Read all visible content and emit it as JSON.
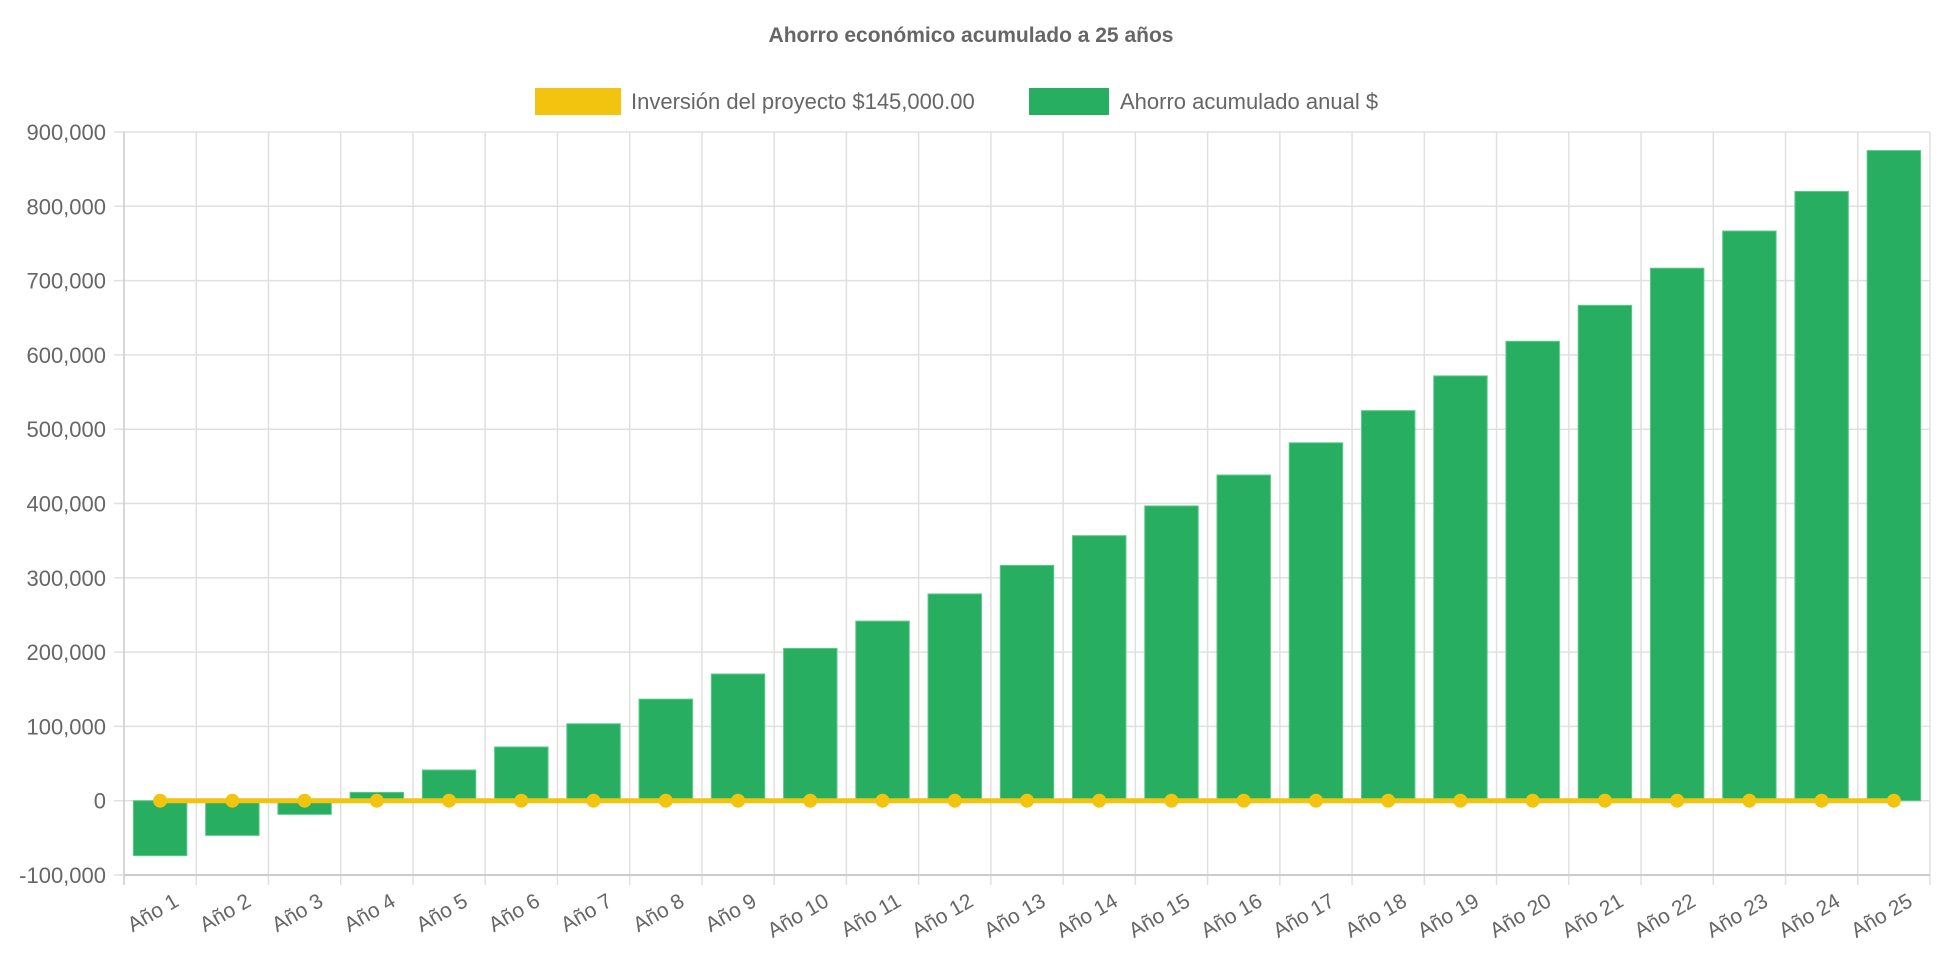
{
  "chart_data": {
    "type": "bar",
    "title": "Ahorro económico acumulado a 25 años",
    "xlabel": "",
    "ylabel": "",
    "categories": [
      "Año 1",
      "Año 2",
      "Año 3",
      "Año 4",
      "Año 5",
      "Año 6",
      "Año 7",
      "Año 8",
      "Año 9",
      "Año 10",
      "Año 11",
      "Año 12",
      "Año 13",
      "Año 14",
      "Año 15",
      "Año 16",
      "Año 17",
      "Año 18",
      "Año 19",
      "Año 20",
      "Año 21",
      "Año 22",
      "Año 23",
      "Año 24",
      "Año 25"
    ],
    "ylim": [
      -100000,
      900000
    ],
    "yticks": [
      -100000,
      0,
      100000,
      200000,
      300000,
      400000,
      500000,
      600000,
      700000,
      800000,
      900000
    ],
    "ytick_labels": [
      "-100,000",
      "0",
      "100,000",
      "200,000",
      "300,000",
      "400,000",
      "500,000",
      "600,000",
      "700,000",
      "800,000",
      "900,000"
    ],
    "grid": true,
    "legend_position": "top",
    "series": [
      {
        "name": "Inversión del proyecto $145,000.00",
        "type": "line",
        "color": "#f2c40f",
        "values": [
          0,
          0,
          0,
          0,
          0,
          0,
          0,
          0,
          0,
          0,
          0,
          0,
          0,
          0,
          0,
          0,
          0,
          0,
          0,
          0,
          0,
          0,
          0,
          0,
          0
        ]
      },
      {
        "name": "Ahorro acumulado anual $",
        "type": "bar",
        "color": "#27ae60",
        "values": [
          -74000,
          -46700,
          -18400,
          11200,
          41300,
          72300,
          103500,
          136700,
          170500,
          205000,
          241700,
          278300,
          316700,
          356700,
          396700,
          438300,
          481700,
          525000,
          571700,
          618300,
          666700,
          716700,
          766700,
          820000,
          875000
        ]
      }
    ]
  }
}
